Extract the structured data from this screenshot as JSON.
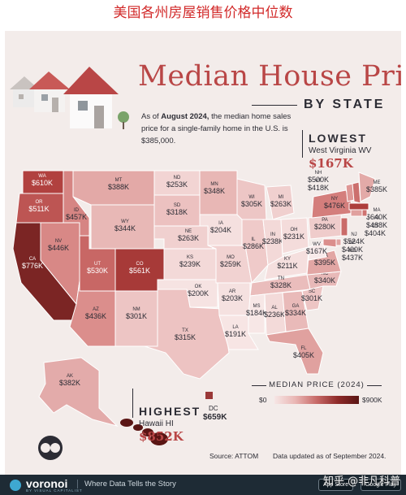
{
  "banner": "美国各州房屋销售价格中位数",
  "header": {
    "title": "Median House Price",
    "subtitle": "BY STATE",
    "intro_prefix": "As of ",
    "intro_bold": "August 2024,",
    "intro_rest": " the median home sales price for a single-family home in the U.S. is $385,000."
  },
  "lowest": {
    "heading": "LOWEST",
    "state": "West Virginia WV",
    "value": "$167K"
  },
  "highest": {
    "heading": "HIGHEST",
    "state": "Hawaii HI",
    "value": "$852K"
  },
  "dc": {
    "label": "DC",
    "value": "$659K",
    "color": "#9a3838"
  },
  "legend": {
    "title": "MEDIAN PRICE (2024)",
    "min": "$0",
    "max": "$900K"
  },
  "source": "Source: ATTOM",
  "updated": "Data updated as of September 2024.",
  "footer": {
    "brand": "voronoi",
    "brand_sub": "BY VISUAL CAPITALIST",
    "tagline": "Where Data Tells the Story",
    "app_store": "App Store",
    "google_play": "Google Play"
  },
  "watermark": "知乎 @非凡科普",
  "states": [
    {
      "abbr": "WA",
      "value": "$610K",
      "color": "#b1413f"
    },
    {
      "abbr": "OR",
      "value": "$511K",
      "color": "#bd5553"
    },
    {
      "abbr": "CA",
      "value": "$776K",
      "color": "#7b2524"
    },
    {
      "abbr": "NV",
      "value": "$446K",
      "color": "#d88886"
    },
    {
      "abbr": "ID",
      "value": "$457K",
      "color": "#d68583"
    },
    {
      "abbr": "MT",
      "value": "$388K",
      "color": "#e3a9a7"
    },
    {
      "abbr": "WY",
      "value": "$344K",
      "color": "#e8b8b6"
    },
    {
      "abbr": "UT",
      "value": "$530K",
      "color": "#c86765"
    },
    {
      "abbr": "AZ",
      "value": "$436K",
      "color": "#db8e8c"
    },
    {
      "abbr": "CO",
      "value": "$561K",
      "color": "#a73a38"
    },
    {
      "abbr": "NM",
      "value": "$301K",
      "color": "#edc5c4"
    },
    {
      "abbr": "ND",
      "value": "$253K",
      "color": "#f2d4d3"
    },
    {
      "abbr": "SD",
      "value": "$318K",
      "color": "#ecc1c0"
    },
    {
      "abbr": "NE",
      "value": "$263K",
      "color": "#f0d0cf"
    },
    {
      "abbr": "KS",
      "value": "$239K",
      "color": "#f3d9d8"
    },
    {
      "abbr": "OK",
      "value": "$200K",
      "color": "#f6e3e2"
    },
    {
      "abbr": "TX",
      "value": "$315K",
      "color": "#edc3c2"
    },
    {
      "abbr": "MN",
      "value": "$348K",
      "color": "#e8b7b5"
    },
    {
      "abbr": "IA",
      "value": "$204K",
      "color": "#f5e0df"
    },
    {
      "abbr": "MO",
      "value": "$259K",
      "color": "#f1d2d1"
    },
    {
      "abbr": "AR",
      "value": "$203K",
      "color": "#f5e1e0"
    },
    {
      "abbr": "LA",
      "value": "$191K",
      "color": "#f7e5e4"
    },
    {
      "abbr": "WI",
      "value": "$305K",
      "color": "#edc6c5"
    },
    {
      "abbr": "IL",
      "value": "$286K",
      "color": "#efcac9"
    },
    {
      "abbr": "MI",
      "value": "$263K",
      "color": "#f0d0cf"
    },
    {
      "abbr": "IN",
      "value": "$238K",
      "color": "#f3d9d8"
    },
    {
      "abbr": "OH",
      "value": "$231K",
      "color": "#f4dcdb"
    },
    {
      "abbr": "KY",
      "value": "$211K",
      "color": "#f5dfde"
    },
    {
      "abbr": "TN",
      "value": "$328K",
      "color": "#eabdbc"
    },
    {
      "abbr": "MS",
      "value": "$184K",
      "color": "#f7e7e6"
    },
    {
      "abbr": "AL",
      "value": "$236K",
      "color": "#f3dad9"
    },
    {
      "abbr": "GA",
      "value": "$334K",
      "color": "#e9bab9"
    },
    {
      "abbr": "FL",
      "value": "$405K",
      "color": "#e0a19f"
    },
    {
      "abbr": "SC",
      "value": "$301K",
      "color": "#edc5c4"
    },
    {
      "abbr": "NC",
      "value": "$340K",
      "color": "#e8b9b8"
    },
    {
      "abbr": "VA",
      "value": "$395K",
      "color": "#e2a6a4"
    },
    {
      "abbr": "WV",
      "value": "$167K",
      "color": "#f8eaea"
    },
    {
      "abbr": "PA",
      "value": "$280K",
      "color": "#efcccb"
    },
    {
      "abbr": "NY",
      "value": "$476K",
      "color": "#d47e7c"
    },
    {
      "abbr": "VT",
      "value": "$418K",
      "color": "#de9795"
    },
    {
      "abbr": "NH",
      "value": "$500K",
      "color": "#cc6f6d"
    },
    {
      "abbr": "ME",
      "value": "$385K",
      "color": "#e3aaa8"
    },
    {
      "abbr": "MA",
      "value": "$640K",
      "color": "#ad3e3c"
    },
    {
      "abbr": "RI",
      "value": "$488K",
      "color": "#cf7472"
    },
    {
      "abbr": "CT",
      "value": "$404K",
      "color": "#e0a19f"
    },
    {
      "abbr": "NJ",
      "value": "$524K",
      "color": "#ca6b69"
    },
    {
      "abbr": "DE",
      "value": "$400K",
      "color": "#e1a3a1"
    },
    {
      "abbr": "MD",
      "value": "$437K",
      "color": "#db8e8c"
    },
    {
      "abbr": "AK",
      "value": "$382K",
      "color": "#e3abaa"
    }
  ]
}
